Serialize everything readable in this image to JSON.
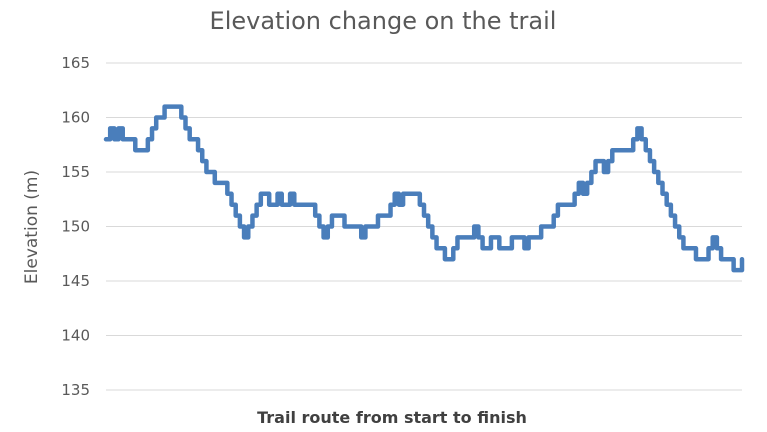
{
  "chart_data": {
    "type": "line",
    "title": "Elevation change on the trail",
    "xlabel": "Trail route from start to finish",
    "ylabel": "Elevation (m)",
    "ylim": [
      135,
      165
    ],
    "yticks": [
      "135",
      "140",
      "145",
      "150",
      "155",
      "160",
      "165"
    ],
    "grid": true,
    "legend": "none",
    "line_color": "#4a7ebb",
    "series": [
      {
        "values": [
          158,
          159,
          158,
          159,
          158,
          158,
          158,
          157,
          157,
          157,
          158,
          159,
          160,
          160,
          161,
          161,
          161,
          161,
          160,
          159,
          158,
          158,
          157,
          156,
          155,
          155,
          154,
          154,
          154,
          153,
          152,
          151,
          150,
          149,
          150,
          151,
          152,
          153,
          153,
          152,
          152,
          153,
          152,
          152,
          153,
          152,
          152,
          152,
          152,
          152,
          151,
          150,
          149,
          150,
          151,
          151,
          151,
          150,
          150,
          150,
          150,
          149,
          150,
          150,
          150,
          151,
          151,
          151,
          152,
          153,
          152,
          153,
          153,
          153,
          153,
          152,
          151,
          150,
          149,
          148,
          148,
          147,
          147,
          148,
          149,
          149,
          149,
          149,
          150,
          149,
          148,
          148,
          149,
          149,
          148,
          148,
          148,
          149,
          149,
          149,
          148,
          149,
          149,
          149,
          150,
          150,
          150,
          151,
          152,
          152,
          152,
          152,
          153,
          154,
          153,
          154,
          155,
          156,
          156,
          155,
          156,
          157,
          157,
          157,
          157,
          157,
          158,
          159,
          158,
          157,
          156,
          155,
          154,
          153,
          152,
          151,
          150,
          149,
          148,
          148,
          148,
          147,
          147,
          147,
          148,
          149,
          148,
          147,
          147,
          147,
          146,
          146,
          147
        ]
      }
    ]
  }
}
